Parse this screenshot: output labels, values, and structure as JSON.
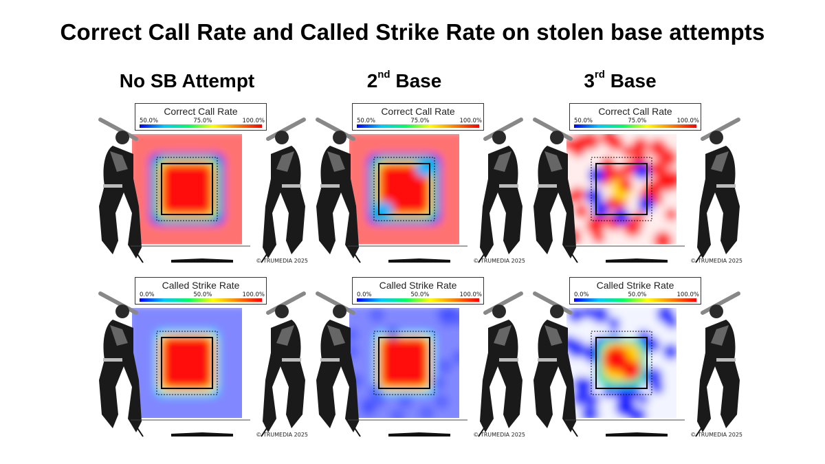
{
  "title": "Correct Call Rate and Called Strike Rate on stolen base attempts",
  "columns": [
    {
      "label": "No SB Attempt",
      "sup": ""
    },
    {
      "label": "2",
      "sup": "nd",
      "rest": " Base"
    },
    {
      "label": "3",
      "sup": "rd",
      "rest": " Base"
    }
  ],
  "watermark": "© TRUMEDIA 2025",
  "colors": {
    "low": "#0000ff",
    "high": "#ff0000"
  },
  "chart_data": [
    {
      "type": "heatmap",
      "row": "Correct Call Rate",
      "column": "No SB Attempt",
      "title": "Correct Call Rate",
      "legend_ticks": [
        "50.0%",
        "75.0%",
        "100.0%"
      ],
      "range": [
        50,
        100
      ],
      "pattern": "ring"
    },
    {
      "type": "heatmap",
      "row": "Correct Call Rate",
      "column": "2nd Base",
      "title": "Correct Call Rate",
      "legend_ticks": [
        "50.0%",
        "75.0%",
        "100.0%"
      ],
      "range": [
        50,
        100
      ],
      "pattern": "ring-wide"
    },
    {
      "type": "heatmap",
      "row": "Correct Call Rate",
      "column": "3rd Base",
      "title": "Correct Call Rate",
      "legend_ticks": [
        "50.0%",
        "75.0%",
        "100.0%"
      ],
      "range": [
        50,
        100
      ],
      "pattern": "sparse-ring"
    },
    {
      "type": "heatmap",
      "row": "Called Strike Rate",
      "column": "No SB Attempt",
      "title": "Called Strike Rate",
      "legend_ticks": [
        "0.0%",
        "50.0%",
        "100.0%"
      ],
      "range": [
        0,
        100
      ],
      "pattern": "zone"
    },
    {
      "type": "heatmap",
      "row": "Called Strike Rate",
      "column": "2nd Base",
      "title": "Called Strike Rate",
      "legend_ticks": [
        "0.0%",
        "50.0%",
        "100.0%"
      ],
      "range": [
        0,
        100
      ],
      "pattern": "zone-soft"
    },
    {
      "type": "heatmap",
      "row": "Called Strike Rate",
      "column": "3rd Base",
      "title": "Called Strike Rate",
      "legend_ticks": [
        "0.0%",
        "50.0%",
        "100.0%"
      ],
      "range": [
        0,
        100
      ],
      "pattern": "zone-sparse"
    }
  ]
}
